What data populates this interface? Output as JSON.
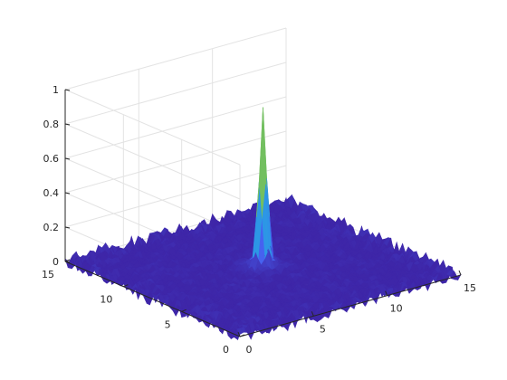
{
  "chart_data": {
    "type": "surface",
    "title": "",
    "xlabel": "",
    "ylabel": "",
    "zlabel": "",
    "xlim": [
      0,
      15
    ],
    "ylim": [
      0,
      15
    ],
    "zlim": [
      0,
      1
    ],
    "grid": true,
    "box": "3d-open",
    "colormap": "parula",
    "colormap_stops": [
      "#3e26a8",
      "#4662f0",
      "#2d96e6",
      "#15b5c6",
      "#35c08a",
      "#a9bf3c",
      "#f4ba3d",
      "#f9e01e"
    ],
    "x_ticks": [
      {
        "value": 0,
        "label": "0"
      },
      {
        "value": 5,
        "label": "5"
      },
      {
        "value": 10,
        "label": "10"
      },
      {
        "value": 15,
        "label": "15"
      }
    ],
    "y_ticks": [
      {
        "value": 0,
        "label": "0"
      },
      {
        "value": 5,
        "label": "5"
      },
      {
        "value": 10,
        "label": "10"
      },
      {
        "value": 15,
        "label": "15"
      }
    ],
    "z_ticks": [
      {
        "value": 0,
        "label": "0"
      },
      {
        "value": 0.2,
        "label": "0.2"
      },
      {
        "value": 0.4,
        "label": "0.4"
      },
      {
        "value": 0.6,
        "label": "0.6"
      },
      {
        "value": 0.8,
        "label": "0.8"
      },
      {
        "value": 1,
        "label": "1"
      }
    ],
    "surface": {
      "peak": {
        "x": 7.5,
        "y": 7.5,
        "z": 0.87
      },
      "base_level": 0.0,
      "noise_amplitude": 0.02,
      "description_shape": "narrow central spike over a flat noisy plateau with faint concentric ripples"
    }
  }
}
